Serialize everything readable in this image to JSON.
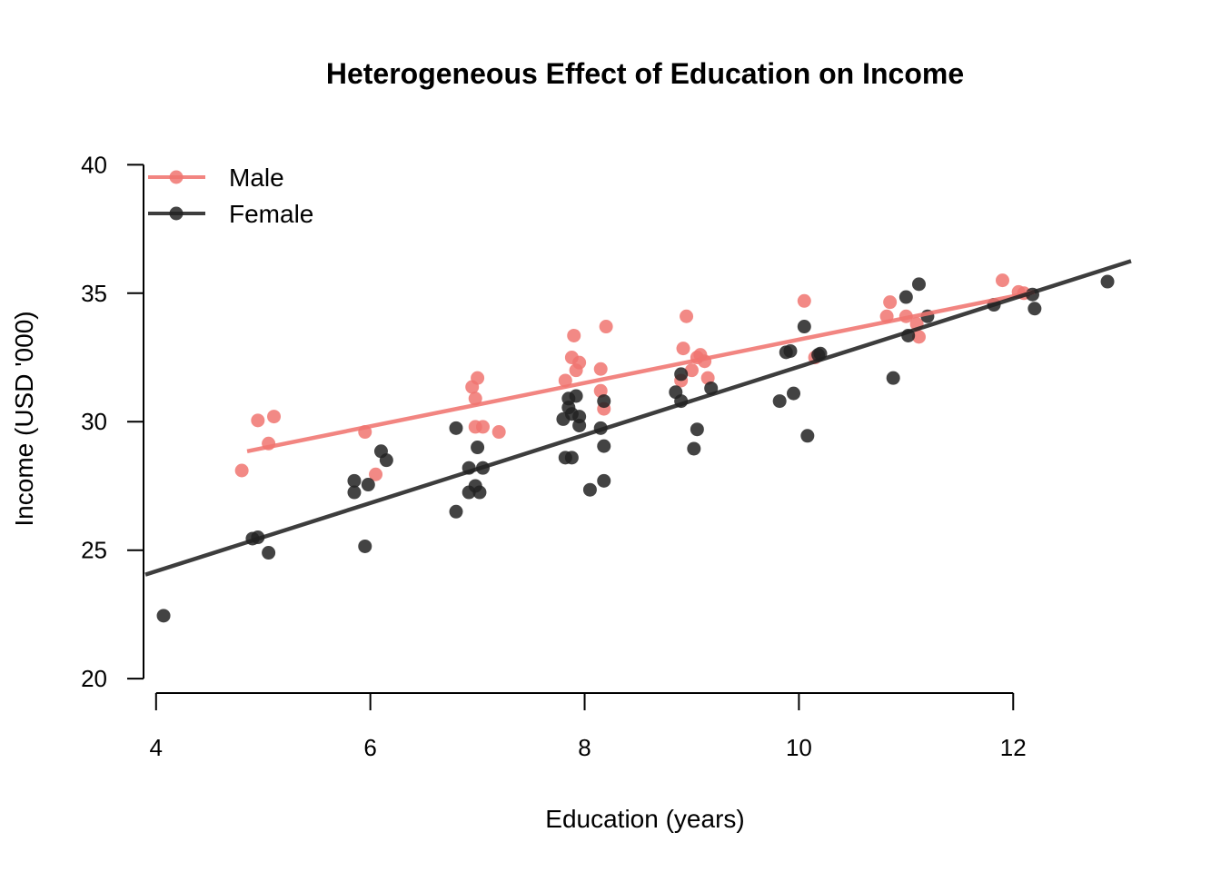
{
  "chart_data": {
    "type": "scatter",
    "title": "Heterogeneous Effect of Education on Income",
    "xlabel": "Education (years)",
    "ylabel": "Income (USD '000)",
    "xlim": [
      3.9,
      13.1
    ],
    "ylim": [
      19.9,
      40.4
    ],
    "xticks": [
      4,
      6,
      8,
      10,
      12
    ],
    "yticks": [
      20,
      25,
      30,
      35,
      40
    ],
    "grid": false,
    "legend_position": "top-left",
    "series": [
      {
        "name": "Male",
        "color": "#f07470",
        "points": [
          [
            4.8,
            28.1
          ],
          [
            4.95,
            30.05
          ],
          [
            5.05,
            29.15
          ],
          [
            5.1,
            30.2
          ],
          [
            5.95,
            29.6
          ],
          [
            6.05,
            27.95
          ],
          [
            6.95,
            31.35
          ],
          [
            6.98,
            29.8
          ],
          [
            7.0,
            31.7
          ],
          [
            6.98,
            30.9
          ],
          [
            7.05,
            29.8
          ],
          [
            7.2,
            29.6
          ],
          [
            7.82,
            31.6
          ],
          [
            7.88,
            32.5
          ],
          [
            7.9,
            33.35
          ],
          [
            7.92,
            32.0
          ],
          [
            7.95,
            32.3
          ],
          [
            8.15,
            32.05
          ],
          [
            8.15,
            31.2
          ],
          [
            8.18,
            30.5
          ],
          [
            8.2,
            33.7
          ],
          [
            8.9,
            31.6
          ],
          [
            8.92,
            32.85
          ],
          [
            8.95,
            34.1
          ],
          [
            9.0,
            32.0
          ],
          [
            9.05,
            32.5
          ],
          [
            9.08,
            32.6
          ],
          [
            9.12,
            32.35
          ],
          [
            9.15,
            31.7
          ],
          [
            10.05,
            34.7
          ],
          [
            10.15,
            32.5
          ],
          [
            10.82,
            34.1
          ],
          [
            10.85,
            34.65
          ],
          [
            11.0,
            34.1
          ],
          [
            11.1,
            33.8
          ],
          [
            11.12,
            33.3
          ],
          [
            11.9,
            35.5
          ],
          [
            12.05,
            35.05
          ],
          [
            12.1,
            35.0
          ]
        ],
        "fit": [
          [
            4.85,
            28.85
          ],
          [
            12.2,
            35.05
          ]
        ]
      },
      {
        "name": "Female",
        "color": "#222222",
        "points": [
          [
            4.07,
            22.45
          ],
          [
            4.9,
            25.45
          ],
          [
            4.95,
            25.5
          ],
          [
            5.05,
            24.9
          ],
          [
            5.85,
            27.7
          ],
          [
            5.85,
            27.25
          ],
          [
            5.95,
            25.15
          ],
          [
            5.98,
            27.55
          ],
          [
            6.1,
            28.85
          ],
          [
            6.15,
            28.5
          ],
          [
            6.8,
            29.75
          ],
          [
            6.8,
            26.5
          ],
          [
            6.92,
            28.2
          ],
          [
            6.92,
            27.25
          ],
          [
            6.98,
            27.5
          ],
          [
            7.0,
            29.0
          ],
          [
            7.02,
            27.25
          ],
          [
            7.05,
            28.2
          ],
          [
            7.8,
            30.1
          ],
          [
            7.82,
            28.6
          ],
          [
            7.85,
            30.55
          ],
          [
            7.85,
            30.9
          ],
          [
            7.88,
            28.6
          ],
          [
            7.88,
            30.3
          ],
          [
            7.92,
            31.0
          ],
          [
            7.95,
            30.2
          ],
          [
            7.95,
            29.85
          ],
          [
            8.05,
            27.35
          ],
          [
            8.15,
            29.75
          ],
          [
            8.18,
            29.05
          ],
          [
            8.18,
            27.7
          ],
          [
            8.18,
            30.8
          ],
          [
            8.85,
            31.15
          ],
          [
            8.9,
            31.85
          ],
          [
            8.9,
            30.8
          ],
          [
            9.02,
            28.95
          ],
          [
            9.05,
            29.7
          ],
          [
            9.18,
            31.3
          ],
          [
            9.82,
            30.8
          ],
          [
            9.88,
            32.7
          ],
          [
            9.92,
            32.75
          ],
          [
            9.95,
            31.1
          ],
          [
            10.05,
            33.7
          ],
          [
            10.08,
            29.45
          ],
          [
            10.18,
            32.6
          ],
          [
            10.2,
            32.65
          ],
          [
            10.88,
            31.7
          ],
          [
            11.0,
            34.85
          ],
          [
            11.02,
            33.35
          ],
          [
            11.12,
            35.35
          ],
          [
            11.2,
            34.1
          ],
          [
            11.82,
            34.55
          ],
          [
            12.18,
            34.95
          ],
          [
            12.2,
            34.4
          ],
          [
            12.88,
            35.45
          ]
        ],
        "fit": [
          [
            3.9,
            24.05
          ],
          [
            13.1,
            36.25
          ]
        ]
      }
    ]
  }
}
